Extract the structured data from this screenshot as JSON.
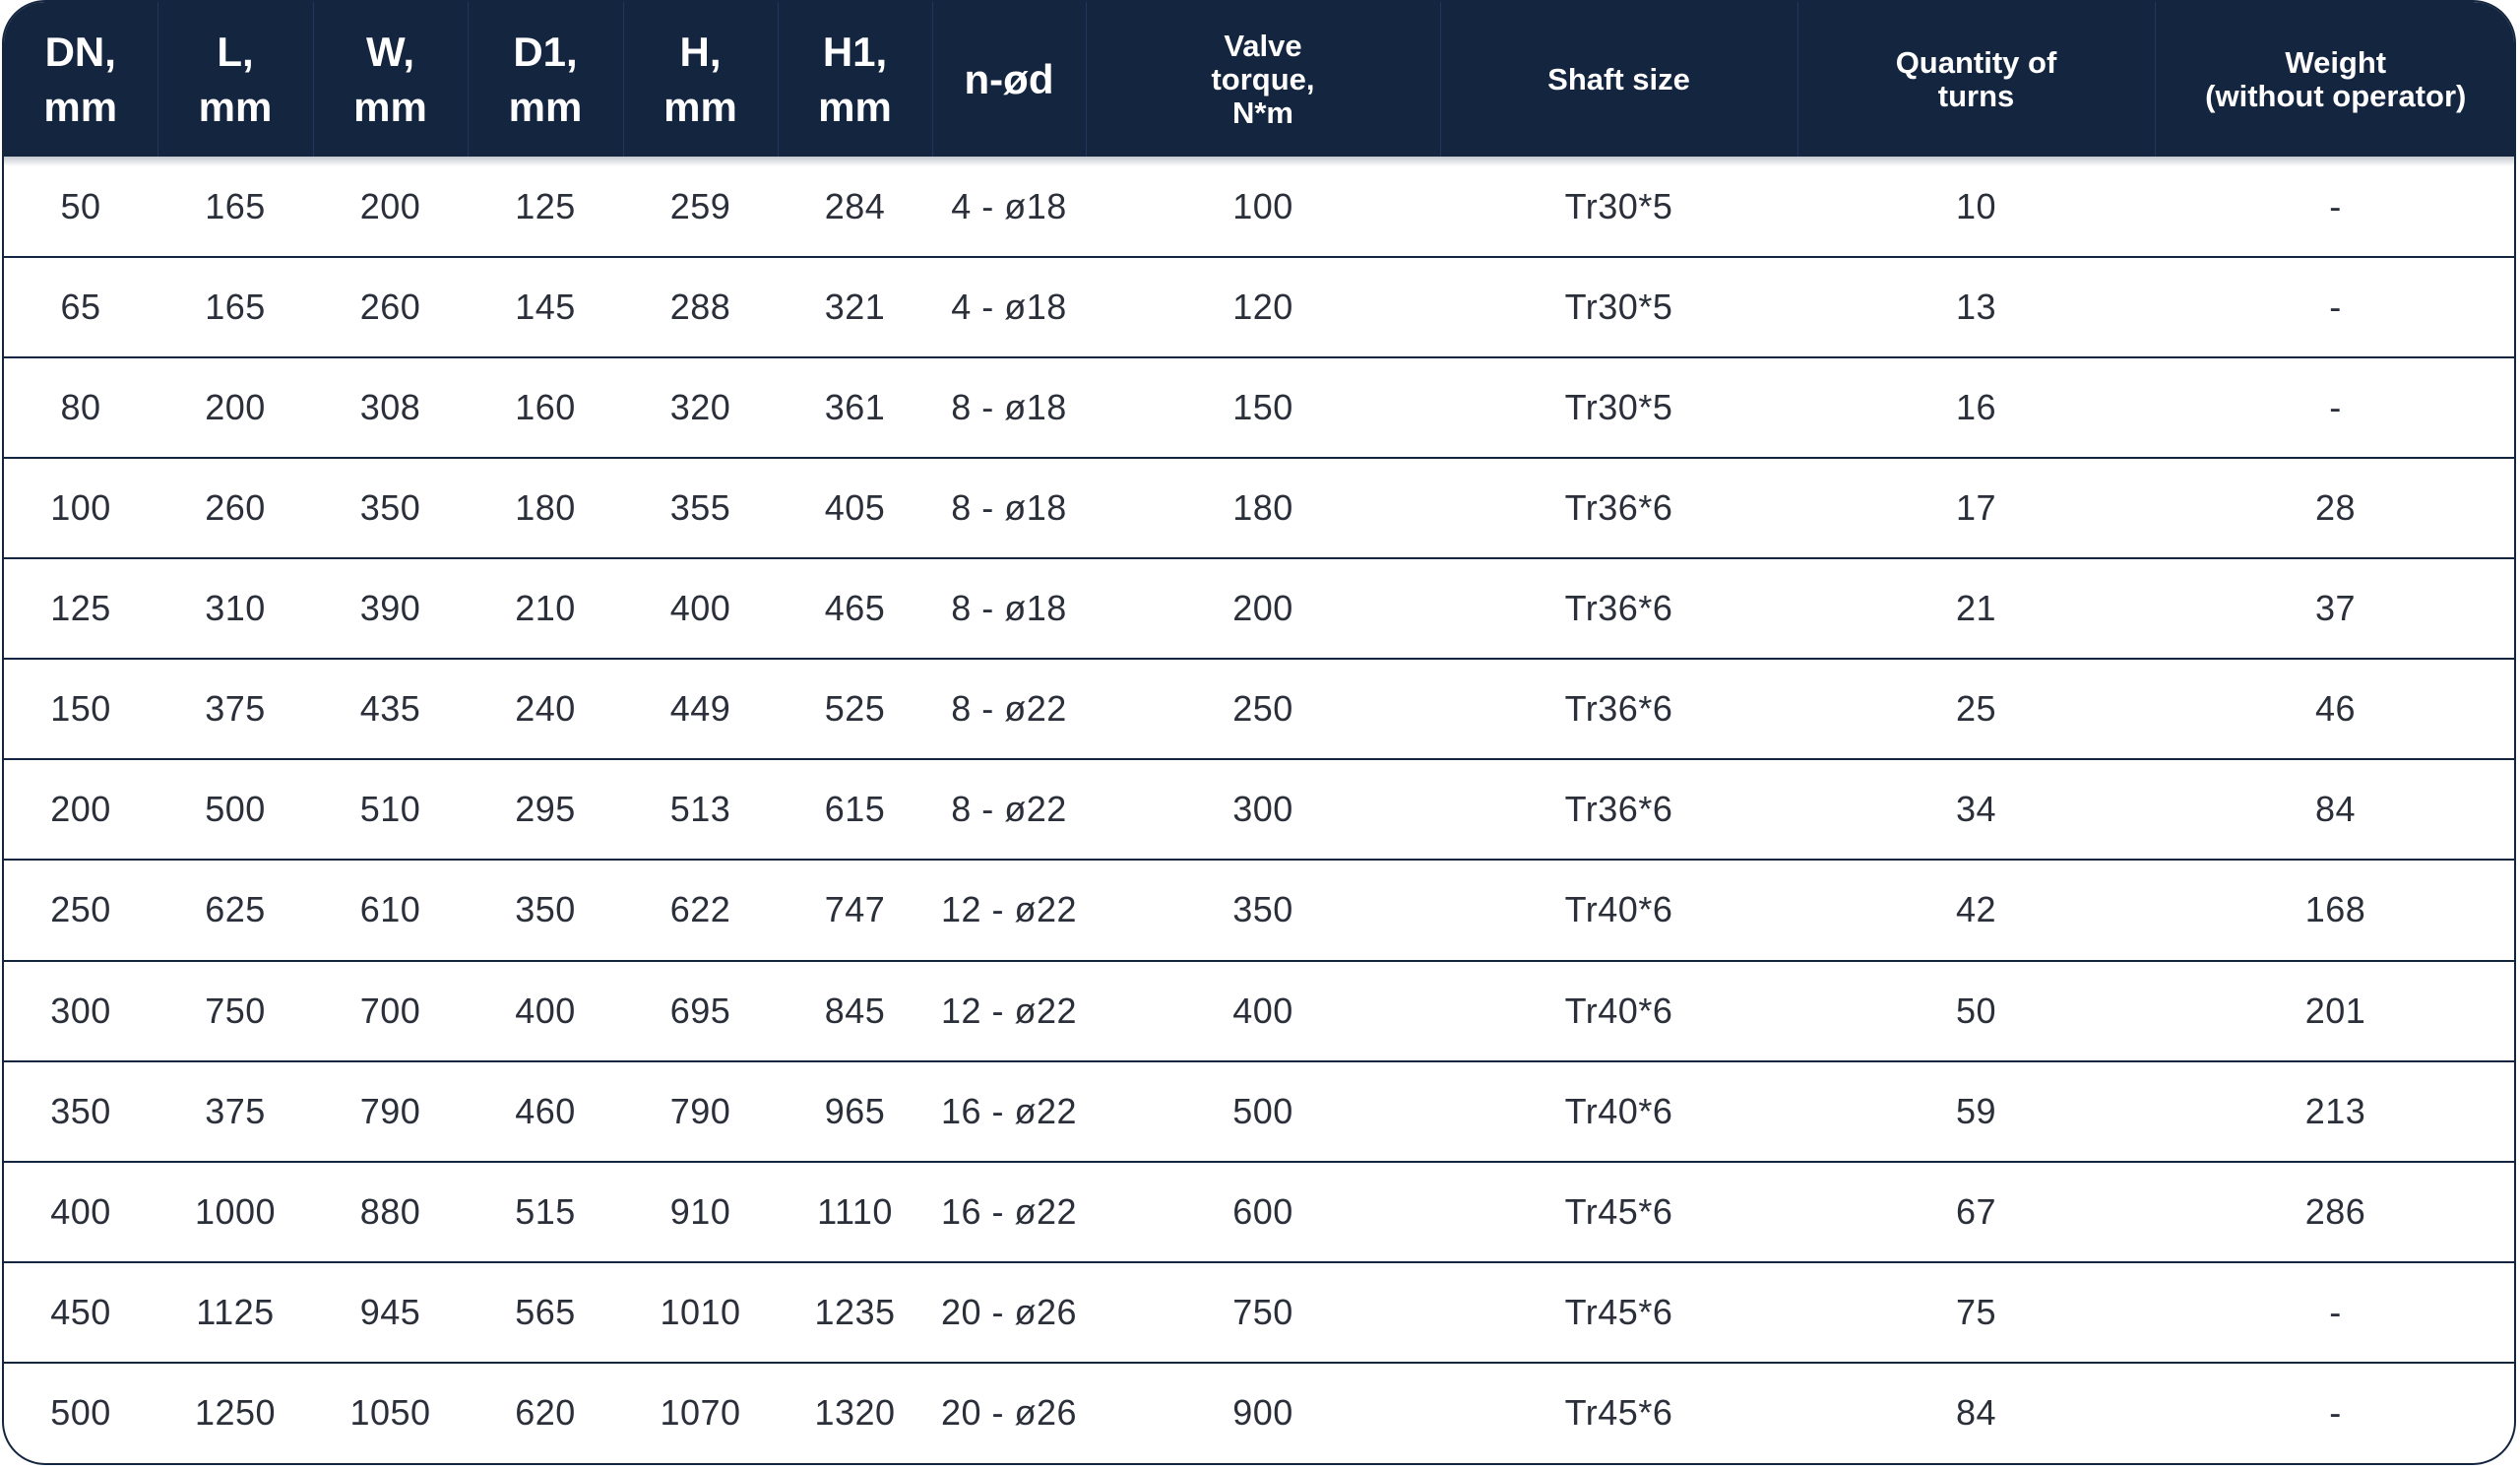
{
  "header": [
    {
      "line1": "DN,",
      "line2": "mm"
    },
    {
      "line1": "L,",
      "line2": "mm"
    },
    {
      "line1": "W,",
      "line2": "mm"
    },
    {
      "line1": "D1,",
      "line2": "mm"
    },
    {
      "line1": "H,",
      "line2": "mm"
    },
    {
      "line1": "H1,",
      "line2": "mm"
    },
    {
      "line1": "n-ød"
    },
    {
      "line1": "Valve",
      "line2": "torque,",
      "line3": "N*m"
    },
    {
      "line1": "Shaft size"
    },
    {
      "line1": "Quantity of",
      "line2": "turns"
    },
    {
      "line1": "Weight",
      "line2": "(without operator)"
    }
  ],
  "rows": [
    [
      "50",
      "165",
      "200",
      "125",
      "259",
      "284",
      "4 - ø18",
      "100",
      "Tr30*5",
      "10",
      "-"
    ],
    [
      "65",
      "165",
      "260",
      "145",
      "288",
      "321",
      "4 - ø18",
      "120",
      "Tr30*5",
      "13",
      "-"
    ],
    [
      "80",
      "200",
      "308",
      "160",
      "320",
      "361",
      "8 - ø18",
      "150",
      "Tr30*5",
      "16",
      "-"
    ],
    [
      "100",
      "260",
      "350",
      "180",
      "355",
      "405",
      "8 - ø18",
      "180",
      "Tr36*6",
      "17",
      "28"
    ],
    [
      "125",
      "310",
      "390",
      "210",
      "400",
      "465",
      "8 - ø18",
      "200",
      "Tr36*6",
      "21",
      "37"
    ],
    [
      "150",
      "375",
      "435",
      "240",
      "449",
      "525",
      "8 - ø22",
      "250",
      "Tr36*6",
      "25",
      "46"
    ],
    [
      "200",
      "500",
      "510",
      "295",
      "513",
      "615",
      "8 - ø22",
      "300",
      "Tr36*6",
      "34",
      "84"
    ],
    [
      "250",
      "625",
      "610",
      "350",
      "622",
      "747",
      "12 - ø22",
      "350",
      "Tr40*6",
      "42",
      "168"
    ],
    [
      "300",
      "750",
      "700",
      "400",
      "695",
      "845",
      "12 - ø22",
      "400",
      "Tr40*6",
      "50",
      "201"
    ],
    [
      "350",
      "375",
      "790",
      "460",
      "790",
      "965",
      "16 - ø22",
      "500",
      "Tr40*6",
      "59",
      "213"
    ],
    [
      "400",
      "1000",
      "880",
      "515",
      "910",
      "1110",
      "16 - ø22",
      "600",
      "Tr45*6",
      "67",
      "286"
    ],
    [
      "450",
      "1125",
      "945",
      "565",
      "1010",
      "1235",
      "20 - ø26",
      "750",
      "Tr45*6",
      "75",
      "-"
    ],
    [
      "500",
      "1250",
      "1050",
      "620",
      "1070",
      "1320",
      "20 - ø26",
      "900",
      "Tr45*6",
      "84",
      "-"
    ]
  ],
  "colors": {
    "header_bg": "#142540",
    "header_text": "#ffffff",
    "cell_text": "#2a2f3a",
    "row_divider": "#142540"
  }
}
